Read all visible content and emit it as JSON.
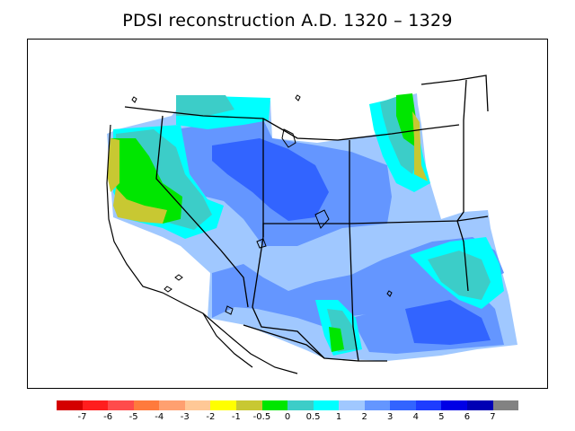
{
  "title": "PDSI reconstruction A.D. 1320 – 1329",
  "legend": {
    "colors": [
      "#d40000",
      "#ff1e1e",
      "#ff4b4b",
      "#ff7a3c",
      "#ffa070",
      "#ffc896",
      "#ffff00",
      "#c8c832",
      "#00e600",
      "#3ccdc8",
      "#00ffff",
      "#a0c8ff",
      "#6496ff",
      "#3264ff",
      "#1e3cff",
      "#0000e6",
      "#0000b4",
      "#828282"
    ],
    "tick_labels": [
      "-7",
      "-6",
      "-5",
      "-4",
      "-3",
      "-2",
      "-1",
      "-0.5",
      "0",
      "0.5",
      "1",
      "2",
      "3",
      "4",
      "5",
      "6",
      "7"
    ]
  },
  "map": {
    "fill_classes": {
      "base": "#a0c8ff",
      "wet": "#6496ff",
      "wetter": "#3264ff",
      "moderate": "#00ffff",
      "mild": "#3ccdc8",
      "neutral": "#00e600",
      "dry": "#c8c832"
    }
  }
}
